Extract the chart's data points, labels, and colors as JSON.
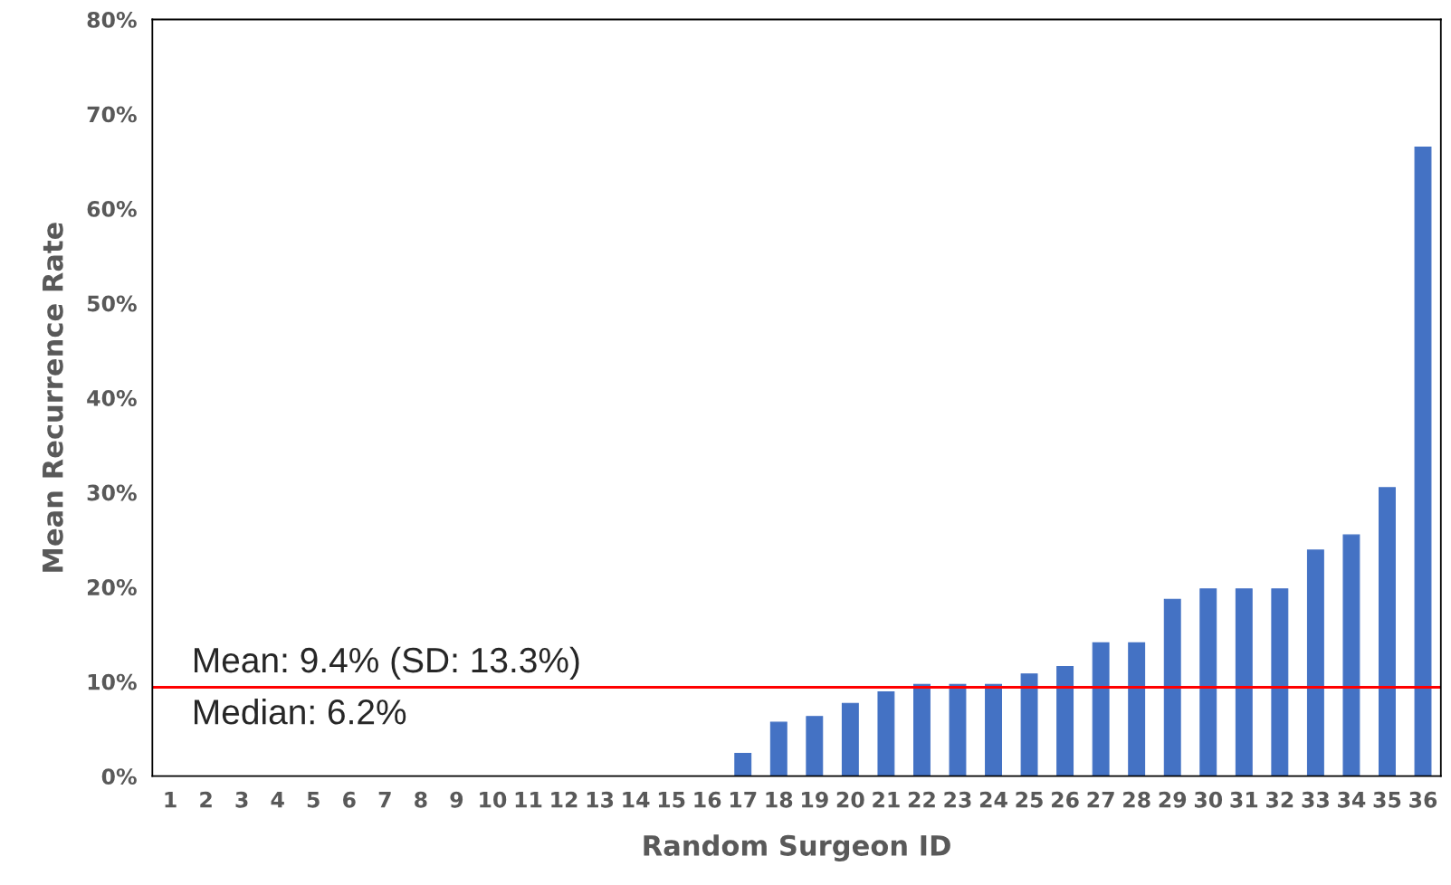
{
  "chart_data": {
    "type": "bar",
    "xlabel": "Random Surgeon ID",
    "ylabel": "Mean Recurrence Rate",
    "categories": [
      "1",
      "2",
      "3",
      "4",
      "5",
      "6",
      "7",
      "8",
      "9",
      "10",
      "11",
      "12",
      "13",
      "14",
      "15",
      "16",
      "17",
      "18",
      "19",
      "20",
      "21",
      "22",
      "23",
      "24",
      "25",
      "26",
      "27",
      "28",
      "29",
      "30",
      "31",
      "32",
      "33",
      "34",
      "35",
      "36"
    ],
    "values": [
      0,
      0,
      0,
      0,
      0,
      0,
      0,
      0,
      0,
      0,
      0,
      0,
      0,
      0,
      0,
      0,
      2.4,
      5.7,
      6.3,
      7.7,
      8.9,
      9.7,
      9.7,
      9.7,
      10.8,
      11.6,
      14.1,
      14.1,
      18.7,
      19.8,
      19.8,
      19.8,
      23.9,
      25.5,
      30.5,
      66.5
    ],
    "color": "#4472c4",
    "ylim": [
      0,
      80
    ],
    "yticks": [
      {
        "value": 0,
        "label": "0%"
      },
      {
        "value": 10,
        "label": "10%"
      },
      {
        "value": 20,
        "label": "20%"
      },
      {
        "value": 30,
        "label": "30%"
      },
      {
        "value": 40,
        "label": "40%"
      },
      {
        "value": 50,
        "label": "50%"
      },
      {
        "value": 60,
        "label": "60%"
      },
      {
        "value": 70,
        "label": "70%"
      },
      {
        "value": 80,
        "label": "80%"
      }
    ],
    "ref_lines": [
      {
        "axis": "y",
        "value": 9.4,
        "label": "Mean: 9.4% (SD: 13.3%)",
        "color": "#ff0000"
      }
    ],
    "annotations": [
      "Median: 6.2%"
    ],
    "grid": false
  }
}
